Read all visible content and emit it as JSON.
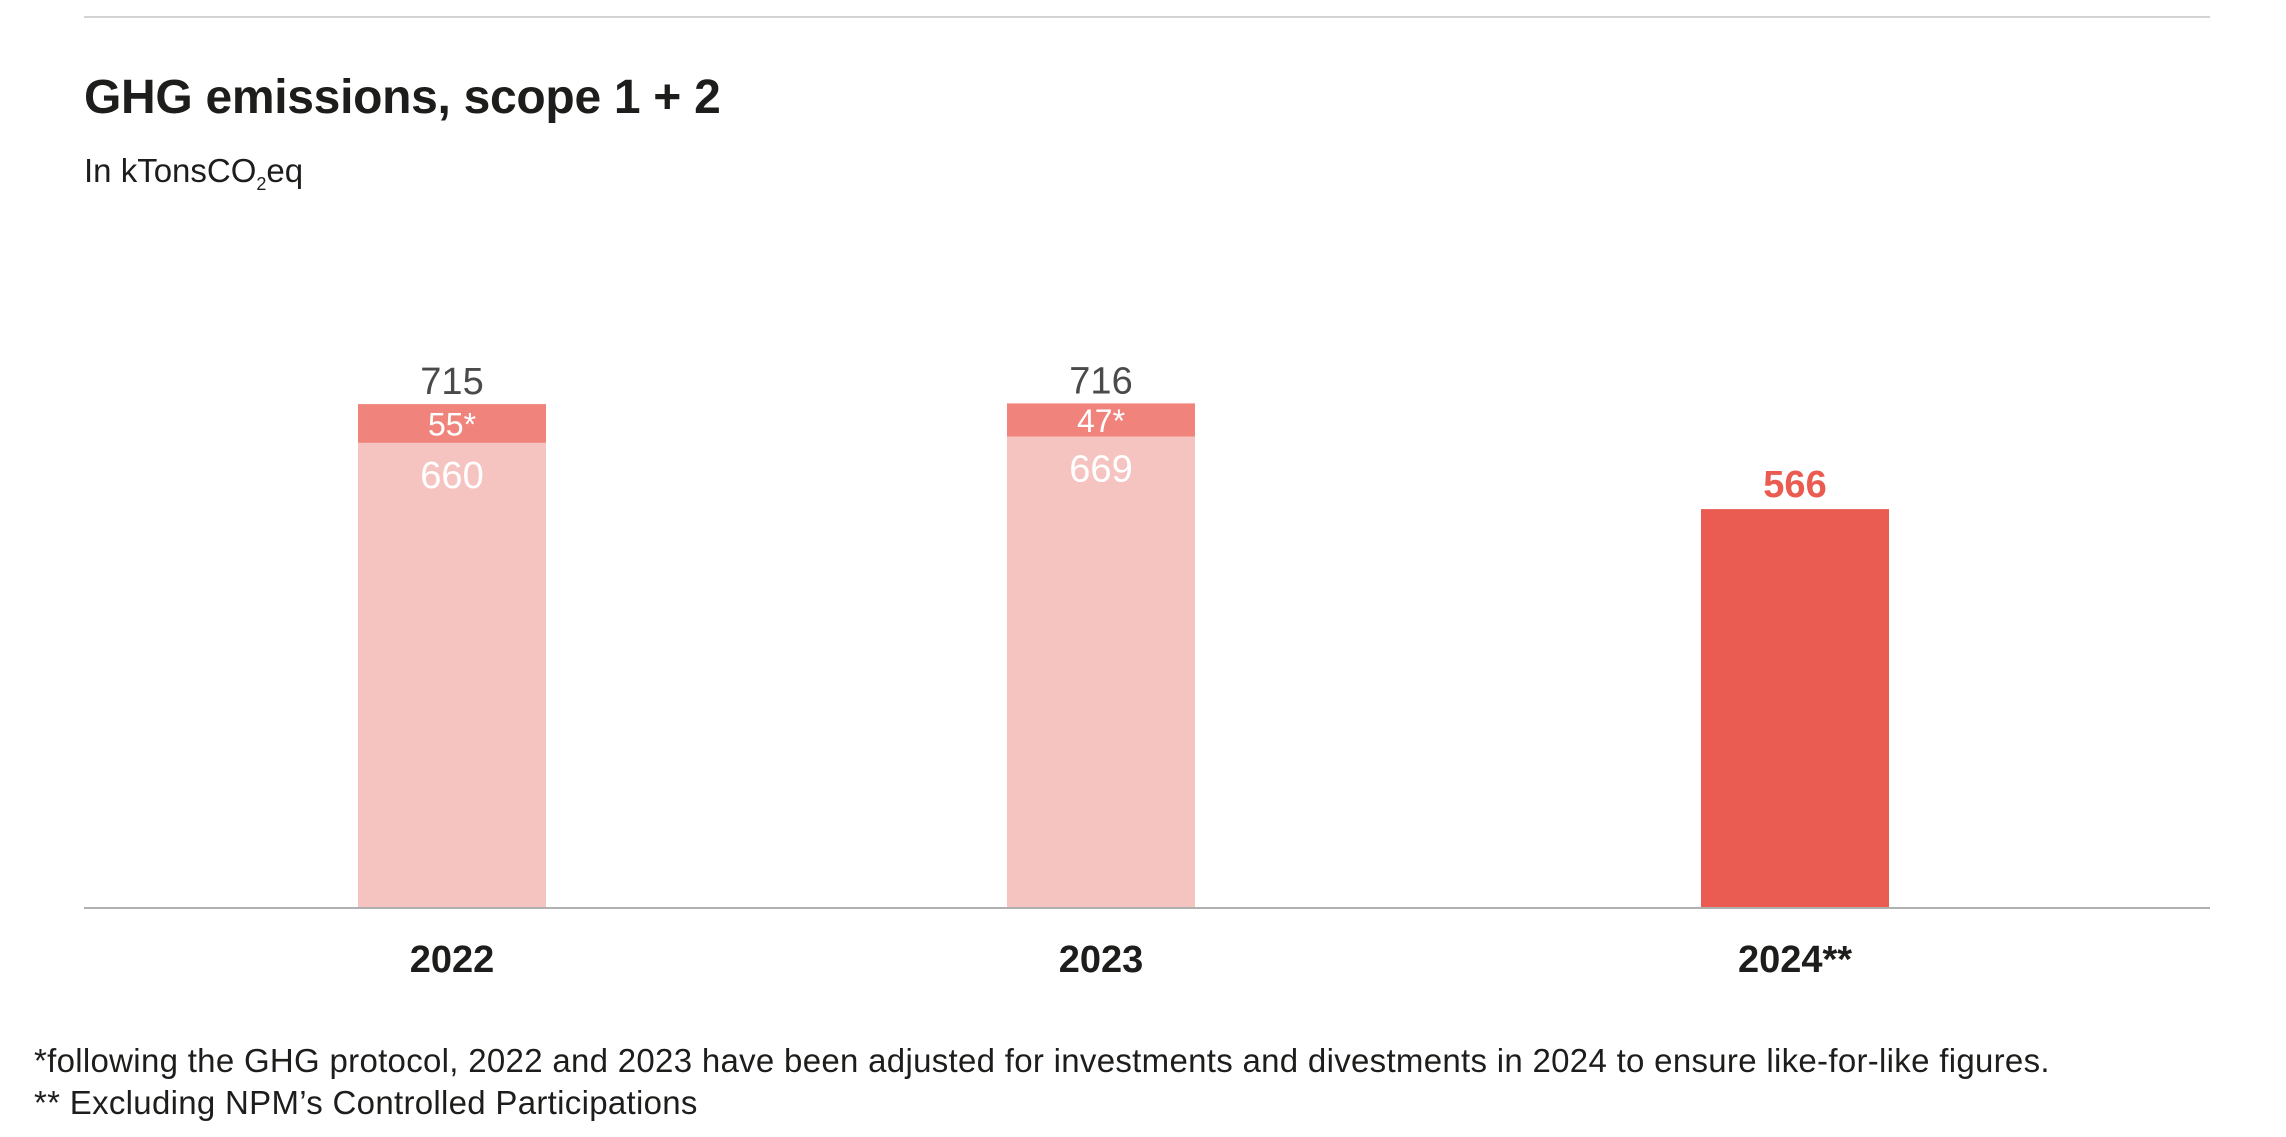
{
  "title": "GHG emissions, scope 1 + 2",
  "subtitle": {
    "prefix": "In kTonsCO",
    "subscript": "2",
    "suffix": "eq"
  },
  "colors": {
    "base": "#f6c4c0",
    "adjustment": "#f0847c",
    "current": "#ea5b51",
    "axis": "#b0b0b0",
    "total_label": "#4a4a4a",
    "inner_label": "#ffffff"
  },
  "chart_data": {
    "type": "bar",
    "stacked": true,
    "categories": [
      "2022",
      "2023",
      "2024**"
    ],
    "series": [
      {
        "values": [
          660,
          669,
          566
        ],
        "labels": [
          "660",
          "669",
          "566"
        ]
      },
      {
        "values": [
          55,
          47,
          0
        ],
        "labels": [
          "55*",
          "47*",
          ""
        ]
      }
    ],
    "totals": [
      "715",
      "716",
      "566"
    ],
    "ylim": [
      0,
      1050
    ],
    "grid": false,
    "legend": "none"
  },
  "footnotes": [
    "*following the GHG protocol, 2022 and 2023 have been adjusted for investments and divestments in 2024 to ensure like-for-like figures.",
    "** Excluding NPM’s Controlled Participations"
  ]
}
